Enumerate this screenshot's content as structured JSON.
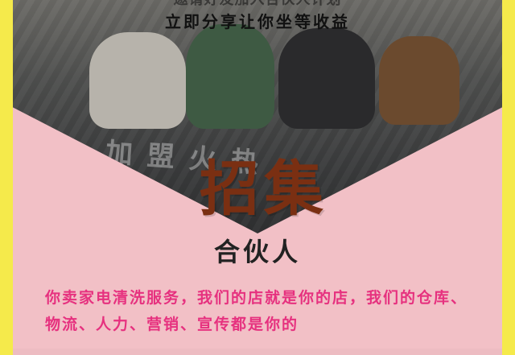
{
  "header": {
    "line1": "邀请好友加入合伙人计划",
    "line2": "立即分享让你坐等收益"
  },
  "hero": {
    "chalk_text": "加盟火热",
    "title": "招集",
    "subtitle": "合伙人"
  },
  "body": {
    "text": "你卖家电清洗服务，我们的店就是你的店，我们的仓库、物流、人力、营销、宣传都是你的"
  },
  "colors": {
    "background": "#f5ea4b",
    "panel": "#f2c0c6",
    "accent": "#e6317f",
    "title": "#7a2f12"
  }
}
